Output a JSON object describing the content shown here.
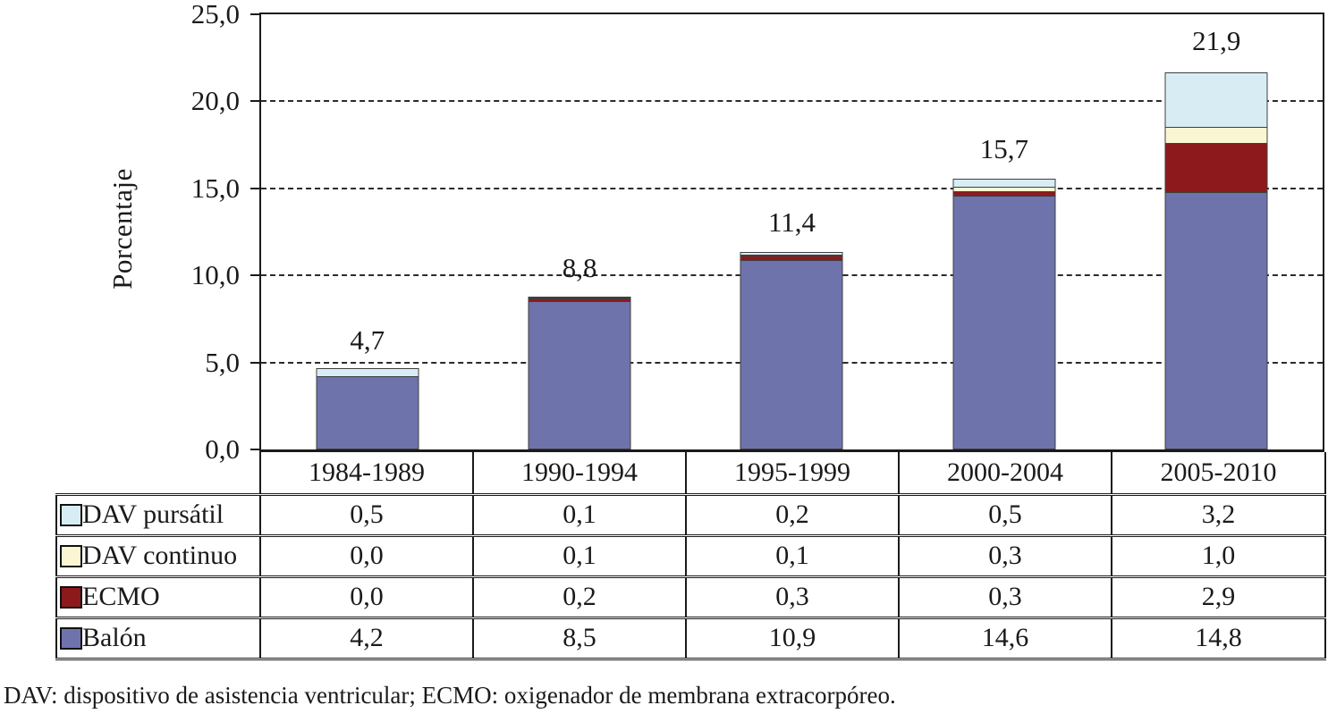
{
  "chart_data": {
    "type": "bar",
    "stacked": true,
    "ylabel": "Porcentaje",
    "ylim": [
      0,
      25
    ],
    "grid": "horizontal-dashed",
    "gridline_values": [
      5,
      10,
      15,
      20
    ],
    "yticks": [
      {
        "label": "25,0",
        "value": 25
      },
      {
        "label": "20,0",
        "value": 20
      },
      {
        "label": "15,0",
        "value": 15
      },
      {
        "label": "10,0",
        "value": 10
      },
      {
        "label": "5,0",
        "value": 5
      },
      {
        "label": "0,0",
        "value": 0
      }
    ],
    "categories": [
      "1984-1989",
      "1990-1994",
      "1995-1999",
      "2000-2004",
      "2005-2010"
    ],
    "series": [
      {
        "name": "DAV pursátil",
        "color": "#d8edf3",
        "values": [
          0.5,
          0.1,
          0.2,
          0.5,
          3.2
        ],
        "labels": [
          "0,5",
          "0,1",
          "0,2",
          "0,5",
          "3,2"
        ]
      },
      {
        "name": "DAV continuo",
        "color": "#faf5d3",
        "values": [
          0.0,
          0.1,
          0.1,
          0.3,
          1.0
        ],
        "labels": [
          "0,0",
          "0,1",
          "0,1",
          "0,3",
          "1,0"
        ]
      },
      {
        "name": "ECMO",
        "color": "#8e191d",
        "values": [
          0.0,
          0.2,
          0.3,
          0.3,
          2.9
        ],
        "labels": [
          "0,0",
          "0,2",
          "0,3",
          "0,3",
          "2,9"
        ]
      },
      {
        "name": "Balón",
        "color": "#6e73ac",
        "values": [
          4.2,
          8.5,
          10.9,
          14.6,
          14.8
        ],
        "labels": [
          "4,2",
          "8,5",
          "10,9",
          "14,6",
          "14,8"
        ]
      }
    ],
    "totals": [
      "4,7",
      "8,8",
      "11,4",
      "15,7",
      "21,9"
    ],
    "footnote": "DAV: dispositivo de asistencia ventricular; ECMO: oxigenador de membrana extracorpóreo."
  }
}
